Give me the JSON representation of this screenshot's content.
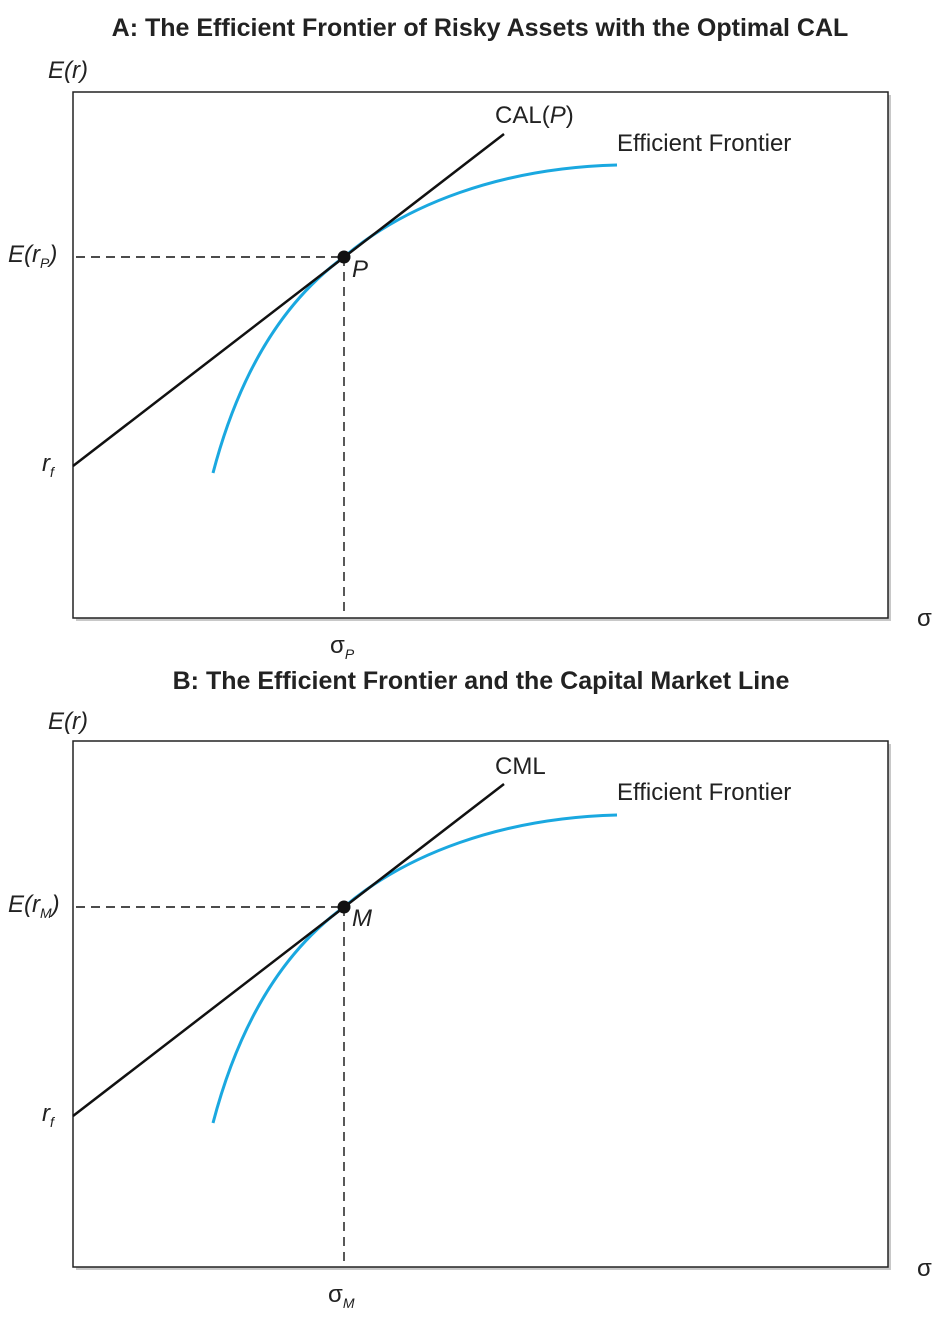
{
  "chart_data": [
    {
      "type": "line",
      "panel_title": "A: The Efficient Frontier of Risky Assets with the Optimal CAL",
      "ylabel": "E(r)",
      "xlabel": "σ",
      "line_label": "CAL(P)",
      "frontier_label": "Efficient Frontier",
      "tangency_label": "P",
      "y_tick_tangency": {
        "base": "E(r",
        "sub": "P",
        "close": ")"
      },
      "y_tick_rf": {
        "base": "r",
        "sub": "f"
      },
      "x_tick_tangency": {
        "base": "σ",
        "sub": "P"
      },
      "colors": {
        "frontier": "#1aa8e0",
        "line": "#111111"
      }
    },
    {
      "type": "line",
      "panel_title": "B: The Efficient Frontier and the Capital Market Line",
      "ylabel": "E(r)",
      "xlabel": "σ",
      "line_label": "CML",
      "frontier_label": "Efficient Frontier",
      "tangency_label": "M",
      "y_tick_tangency": {
        "base": "E(r",
        "sub": "M",
        "close": ")"
      },
      "y_tick_rf": {
        "base": "r",
        "sub": "f"
      },
      "x_tick_tangency": {
        "base": "σ",
        "sub": "M"
      },
      "colors": {
        "frontier": "#1aa8e0",
        "line": "#111111"
      }
    }
  ]
}
